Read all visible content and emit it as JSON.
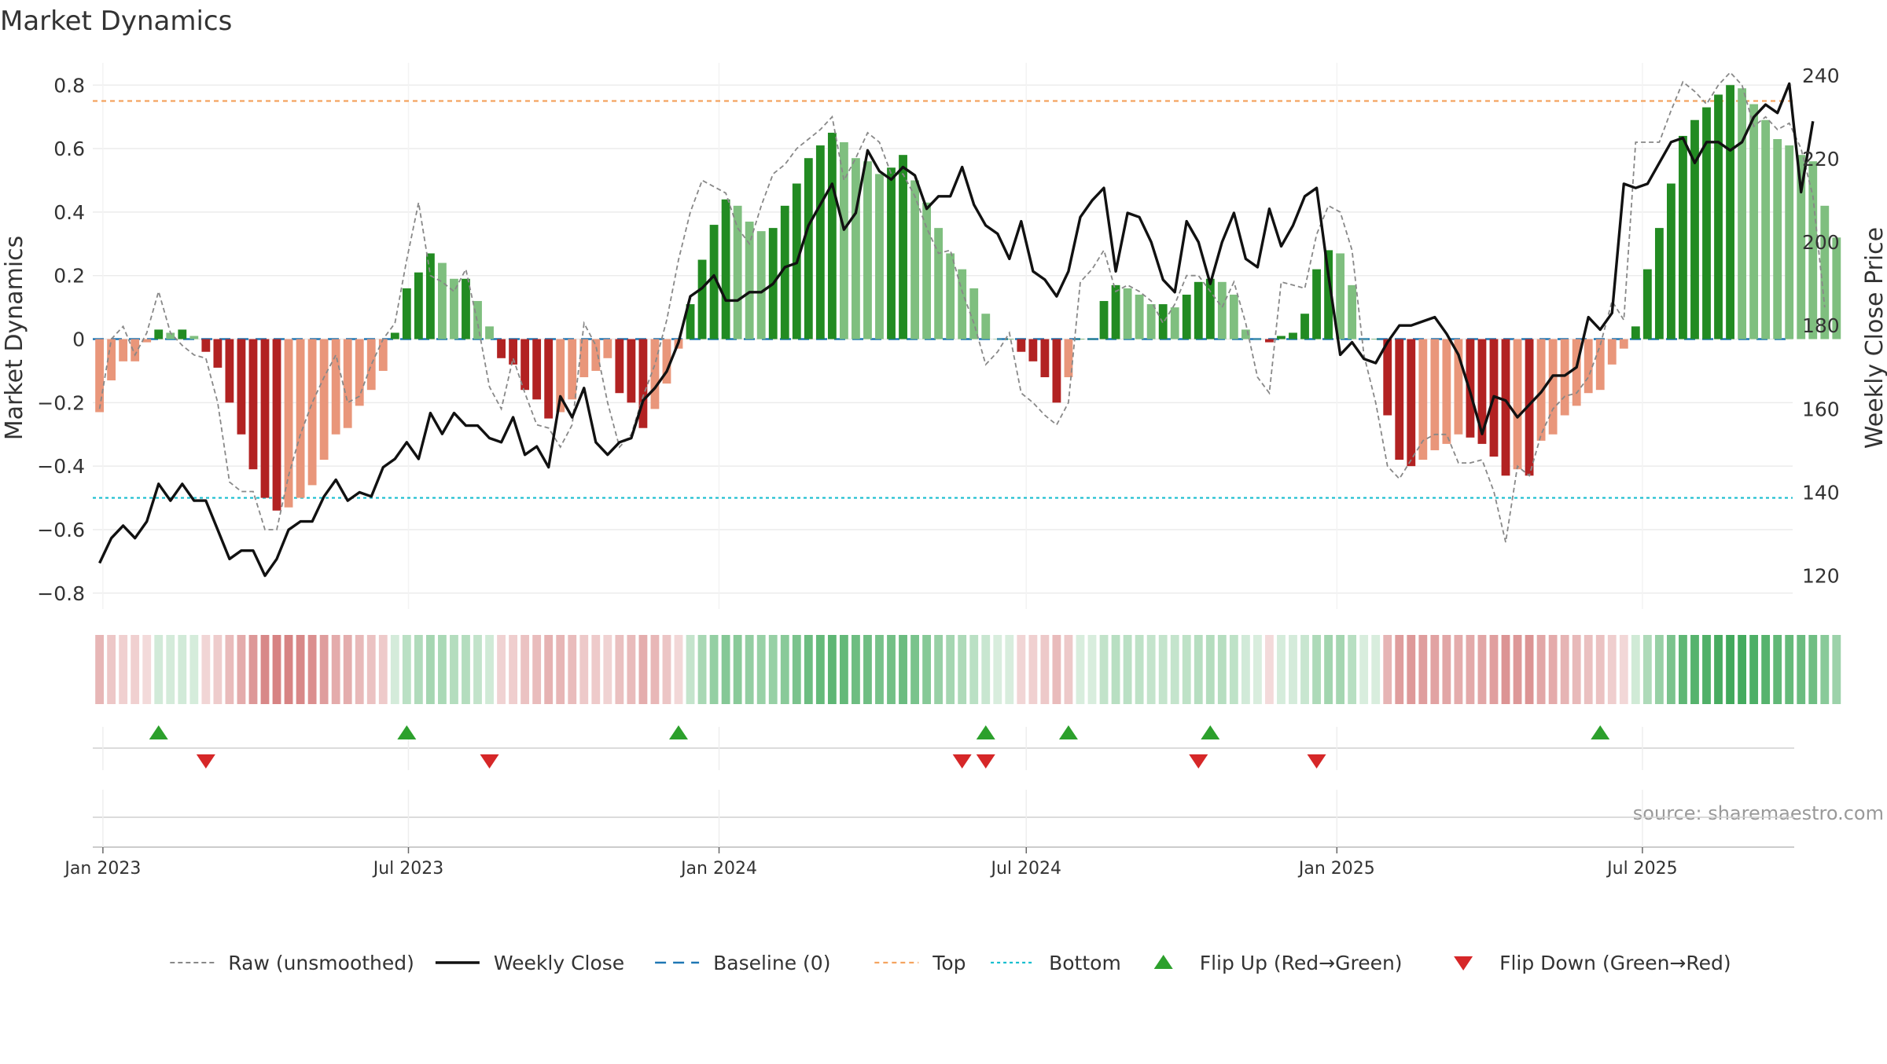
{
  "chart_data": {
    "type": "bar",
    "title": "Market Dynamics",
    "ylabel": "Market Dynamics",
    "y2label": "Weekly Close Price",
    "ylim": [
      -0.85,
      0.87
    ],
    "y2lim": [
      112,
      243
    ],
    "yticks": [
      -0.8,
      -0.6,
      -0.4,
      -0.2,
      0,
      0.2,
      0.4,
      0.6,
      0.8
    ],
    "y2ticks": [
      120,
      140,
      160,
      180,
      200,
      220,
      240
    ],
    "xlim": [
      "2022-12-26",
      "2025-09-28"
    ],
    "xticks": [
      {
        "date": "2023-01-01",
        "label": "Jan 2023"
      },
      {
        "date": "2023-07-01",
        "label": "Jul 2023"
      },
      {
        "date": "2024-01-01",
        "label": "Jan 2024"
      },
      {
        "date": "2024-07-01",
        "label": "Jul 2024"
      },
      {
        "date": "2025-01-01",
        "label": "Jan 2025"
      },
      {
        "date": "2025-07-01",
        "label": "Jul 2025"
      }
    ],
    "start_date": "2022-12-30",
    "week_step_days": 7,
    "top_level": 0.75,
    "bottom_level": -0.5,
    "baseline": 0,
    "source": "source: sharemaestro.com",
    "colors": {
      "green_strong": "#228b22",
      "green_light": "#7fbf7f",
      "red_strong": "#b22222",
      "red_light": "#e9967a",
      "raw": "#888888",
      "close": "#111111",
      "baseline": "#1f77b4",
      "top": "#f4a460",
      "bottom": "#17becf",
      "flip_up": "#2ca02c",
      "flip_down": "#d62728"
    },
    "series": [
      {
        "name": "Market Dynamics",
        "values": [
          -0.23,
          -0.13,
          -0.07,
          -0.07,
          -0.01,
          0.03,
          0.02,
          0.03,
          0.01,
          -0.04,
          -0.09,
          -0.2,
          -0.3,
          -0.41,
          -0.5,
          -0.54,
          -0.53,
          -0.5,
          -0.46,
          -0.38,
          -0.3,
          -0.28,
          -0.21,
          -0.16,
          -0.1,
          0.02,
          0.16,
          0.21,
          0.27,
          0.24,
          0.19,
          0.19,
          0.12,
          0.04,
          -0.06,
          -0.08,
          -0.16,
          -0.19,
          -0.25,
          -0.23,
          -0.19,
          -0.12,
          -0.1,
          -0.06,
          -0.17,
          -0.2,
          -0.28,
          -0.22,
          -0.14,
          -0.03,
          0.11,
          0.25,
          0.36,
          0.44,
          0.42,
          0.37,
          0.34,
          0.35,
          0.42,
          0.49,
          0.57,
          0.61,
          0.65,
          0.62,
          0.57,
          0.56,
          0.52,
          0.54,
          0.58,
          0.5,
          0.43,
          0.35,
          0.27,
          0.22,
          0.16,
          0.08,
          0.0,
          0.0,
          -0.04,
          -0.07,
          -0.12,
          -0.2,
          -0.12,
          0.0,
          0.0,
          0.12,
          0.17,
          0.16,
          0.14,
          0.11,
          0.11,
          0.1,
          0.14,
          0.18,
          0.19,
          0.18,
          0.14,
          0.03,
          0.0,
          -0.01,
          0.01,
          0.02,
          0.08,
          0.22,
          0.28,
          0.27,
          0.17,
          0.0,
          0.0,
          -0.24,
          -0.38,
          -0.4,
          -0.38,
          -0.35,
          -0.33,
          -0.3,
          -0.31,
          -0.33,
          -0.37,
          -0.43,
          -0.41,
          -0.43,
          -0.32,
          -0.3,
          -0.24,
          -0.21,
          -0.17,
          -0.16,
          -0.08,
          -0.03,
          0.04,
          0.22,
          0.35,
          0.49,
          0.64,
          0.69,
          0.73,
          0.77,
          0.8,
          0.79,
          0.74,
          0.69,
          0.63,
          0.61,
          0.58,
          0.56,
          0.42,
          0.32
        ]
      },
      {
        "name": "Raw (unsmoothed)",
        "values": [
          -0.22,
          0.0,
          0.04,
          -0.05,
          0.02,
          0.15,
          0.02,
          -0.02,
          -0.05,
          -0.06,
          -0.2,
          -0.45,
          -0.48,
          -0.48,
          -0.6,
          -0.6,
          -0.43,
          -0.3,
          -0.2,
          -0.12,
          -0.05,
          -0.2,
          -0.18,
          -0.08,
          0.0,
          0.05,
          0.25,
          0.43,
          0.2,
          0.18,
          0.15,
          0.22,
          0.05,
          -0.15,
          -0.22,
          -0.06,
          -0.17,
          -0.27,
          -0.28,
          -0.34,
          -0.27,
          0.05,
          -0.02,
          -0.2,
          -0.34,
          -0.3,
          -0.18,
          -0.08,
          0.06,
          0.25,
          0.4,
          0.5,
          0.48,
          0.46,
          0.35,
          0.3,
          0.42,
          0.52,
          0.55,
          0.6,
          0.63,
          0.66,
          0.7,
          0.5,
          0.57,
          0.65,
          0.62,
          0.52,
          0.52,
          0.45,
          0.35,
          0.27,
          0.28,
          0.15,
          0.05,
          -0.08,
          -0.04,
          0.02,
          -0.17,
          -0.2,
          -0.24,
          -0.27,
          -0.2,
          0.18,
          0.22,
          0.28,
          0.15,
          0.17,
          0.15,
          0.12,
          0.05,
          0.11,
          0.2,
          0.2,
          0.15,
          0.1,
          0.18,
          0.05,
          -0.12,
          -0.17,
          0.18,
          0.17,
          0.16,
          0.33,
          0.42,
          0.4,
          0.28,
          -0.05,
          -0.2,
          -0.4,
          -0.44,
          -0.38,
          -0.32,
          -0.3,
          -0.3,
          -0.39,
          -0.39,
          -0.38,
          -0.48,
          -0.64,
          -0.4,
          -0.43,
          -0.3,
          -0.22,
          -0.18,
          -0.17,
          -0.12,
          -0.02,
          0.12,
          0.06,
          0.62,
          0.62,
          0.62,
          0.72,
          0.81,
          0.78,
          0.74,
          0.8,
          0.84,
          0.8,
          0.67,
          0.7,
          0.66,
          0.68,
          0.6,
          0.45,
          0.1
        ]
      },
      {
        "name": "Weekly Close",
        "values": [
          123,
          129,
          132,
          129,
          133,
          142,
          138,
          142,
          138,
          138,
          131,
          124,
          126,
          126,
          120,
          124,
          131,
          133,
          133,
          139,
          143,
          138,
          140,
          139,
          146,
          148,
          152,
          148,
          159,
          154,
          159,
          156,
          156,
          153,
          152,
          158,
          149,
          151,
          146,
          163,
          158,
          165,
          152,
          149,
          152,
          153,
          162,
          165,
          169,
          176,
          187,
          189,
          192,
          186,
          186,
          188,
          188,
          190,
          194,
          195,
          204,
          209,
          214,
          203,
          207,
          222,
          217,
          215,
          218,
          216,
          208,
          211,
          211,
          218,
          209,
          204,
          202,
          196,
          205,
          193,
          191,
          187,
          193,
          206,
          210,
          213,
          193,
          207,
          206,
          200,
          191,
          188,
          205,
          200,
          190,
          200,
          207,
          196,
          194,
          208,
          199,
          204,
          211,
          213,
          192,
          173,
          176,
          172,
          171,
          176,
          180,
          180,
          181,
          182,
          178,
          173,
          164,
          154,
          163,
          162,
          158,
          161,
          164,
          168,
          168,
          170,
          182,
          179,
          183,
          214,
          213,
          214,
          219,
          224,
          225,
          219,
          224,
          224,
          222,
          224,
          230,
          233,
          231,
          238,
          212,
          229
        ]
      },
      {
        "name": "Baseline (0)"
      },
      {
        "name": "Top"
      },
      {
        "name": "Bottom"
      },
      {
        "name": "Flip Up (Red→Green)"
      },
      {
        "name": "Flip Down (Green→Red)"
      }
    ],
    "flip_up_dates": [
      "2023-02-03",
      "2023-06-30",
      "2023-12-08",
      "2024-06-07",
      "2024-07-26",
      "2024-10-18",
      "2025-06-06"
    ],
    "flip_down_dates": [
      "2023-03-03",
      "2023-08-18",
      "2024-05-24",
      "2024-06-07",
      "2024-10-11",
      "2024-12-20"
    ]
  }
}
